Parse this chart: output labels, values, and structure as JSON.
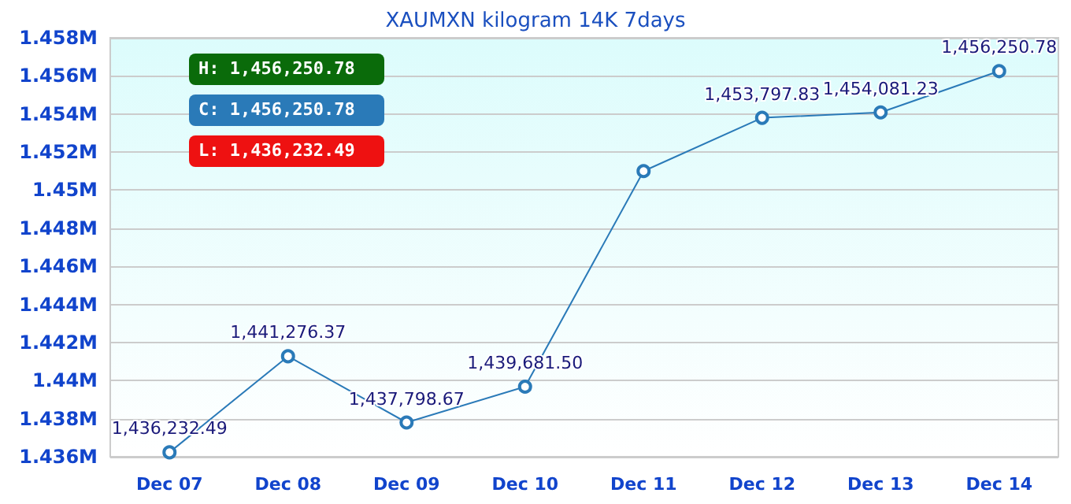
{
  "chart_data": {
    "type": "line",
    "title": "XAUMXN kilogram 14K 7days",
    "categories": [
      "Dec 07",
      "Dec 08",
      "Dec 09",
      "Dec 10",
      "Dec 11",
      "Dec 12",
      "Dec 13",
      "Dec 14"
    ],
    "series": [
      {
        "color": "#2a7ab8",
        "values": [
          1436232.49,
          1441276.37,
          1437798.67,
          1439681.5,
          1451000,
          1453797.83,
          1454081.23,
          1456250.78
        ],
        "value_labels": [
          "1,436,232.49",
          "1,441,276.37",
          "1,437,798.67",
          "1,439,681.50",
          null,
          "1,453,797.83",
          "1,454,081.23",
          "1,456,250.78"
        ]
      }
    ],
    "ylim": [
      1436000,
      1458000
    ],
    "yticks": [
      {
        "value": 1436000,
        "label": "1.436M"
      },
      {
        "value": 1438000,
        "label": "1.438M"
      },
      {
        "value": 1440000,
        "label": "1.44M"
      },
      {
        "value": 1442000,
        "label": "1.442M"
      },
      {
        "value": 1444000,
        "label": "1.444M"
      },
      {
        "value": 1446000,
        "label": "1.446M"
      },
      {
        "value": 1448000,
        "label": "1.448M"
      },
      {
        "value": 1450000,
        "label": "1.45M"
      },
      {
        "value": 1452000,
        "label": "1.452M"
      },
      {
        "value": 1454000,
        "label": "1.454M"
      },
      {
        "value": 1456000,
        "label": "1.456M"
      },
      {
        "value": 1458000,
        "label": "1.458M"
      }
    ],
    "annotations": [
      "H: 1,456,250.78",
      "C: 1,456,250.78",
      "L: 1,436,232.49"
    ],
    "grid": "y",
    "marker": "circle",
    "line_style": "solid"
  }
}
